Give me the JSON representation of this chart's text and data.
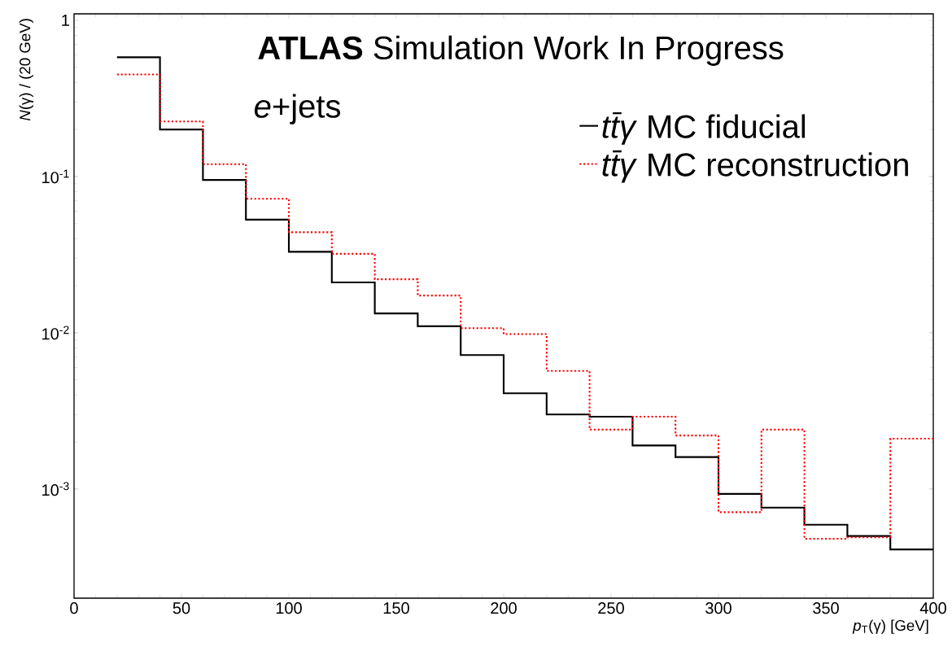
{
  "chart_data": {
    "type": "histogram",
    "title": "**ATLAS** Simulation Work In Progress",
    "xlabel": "*p*$_{T}$(γ) [GeV]",
    "ylabel": "*N*(γ) / (20 GeV)",
    "annotations": [
      "*e*+jets"
    ],
    "bins": [
      20,
      40,
      60,
      80,
      100,
      120,
      140,
      160,
      180,
      200,
      220,
      240,
      260,
      280,
      300,
      320,
      340,
      360,
      380,
      400
    ],
    "series": [
      {
        "name": "*tt̄γ* MC fiducial",
        "color": "#000000",
        "line_style": "solid",
        "values": [
          0.58,
          0.2,
          0.095,
          0.053,
          0.033,
          0.021,
          0.0133,
          0.011,
          0.0072,
          0.0041,
          0.003,
          0.0029,
          0.0019,
          0.0016,
          0.00093,
          0.00076,
          0.00059,
          0.0005,
          0.00041
        ]
      },
      {
        "name": "*tt̄γ* MC reconstruction",
        "color": "#ff0000",
        "line_style": "dotted",
        "values": [
          0.45,
          0.225,
          0.12,
          0.072,
          0.044,
          0.032,
          0.022,
          0.0173,
          0.0107,
          0.0098,
          0.0057,
          0.0024,
          0.0029,
          0.0022,
          0.00071,
          0.0024,
          0.00048,
          0.00049,
          0.0021
        ]
      }
    ],
    "xlim": [
      0,
      400
    ],
    "ylim": [
      0.0002,
      1.1
    ],
    "log": "y",
    "xticks": [
      0,
      50,
      100,
      150,
      200,
      250,
      300,
      350,
      400
    ],
    "yticks": [
      {
        "value": 0.001,
        "label": "10$^{-3}$"
      },
      {
        "value": 0.01,
        "label": "10$^{-2}$"
      },
      {
        "value": 0.1,
        "label": "10$^{-1}$"
      },
      1
    ],
    "legend": "top right",
    "marker": "none"
  }
}
